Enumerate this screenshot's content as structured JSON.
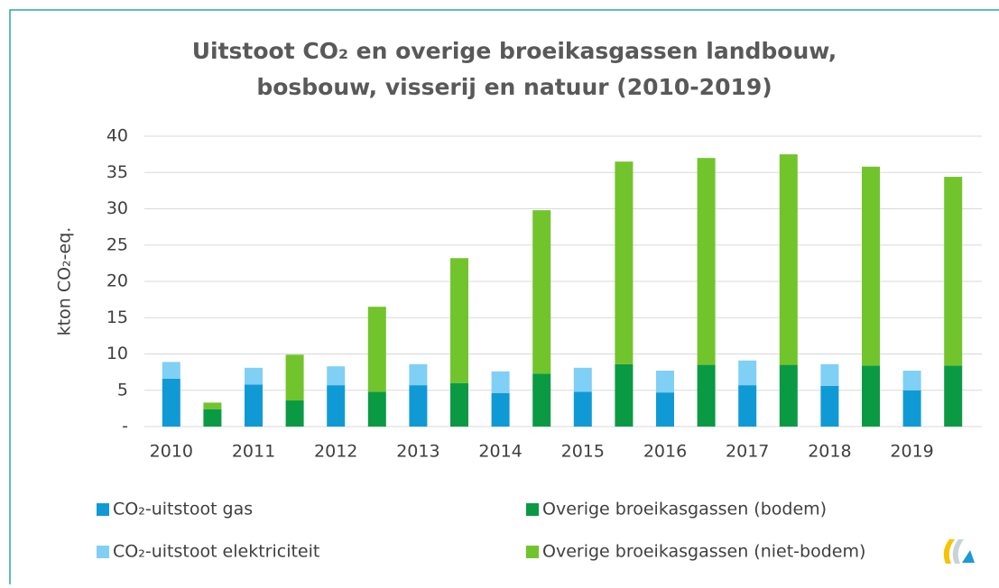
{
  "chart_data": {
    "type": "bar",
    "stacked": true,
    "title": [
      "Uitstoot CO₂ en overige broeikasgassen landbouw,",
      "bosbouw, visserij en natuur (2010-2019)"
    ],
    "y_label": "kton CO₂-eq.",
    "categories": [
      "2010",
      null,
      "2011",
      null,
      "2012",
      null,
      "2013",
      null,
      "2014",
      null,
      "2015",
      null,
      "2016",
      null,
      "2017",
      null,
      "2018",
      null,
      "2019",
      null
    ],
    "series": [
      {
        "name": "CO₂-uitstoot gas",
        "color": "#0f9ad6",
        "values": [
          6.6,
          null,
          5.8,
          null,
          5.7,
          null,
          5.7,
          null,
          4.6,
          null,
          4.8,
          null,
          4.7,
          null,
          5.7,
          null,
          5.6,
          null,
          5.0,
          null
        ]
      },
      {
        "name": "CO₂-uitstoot elektriciteit",
        "color": "#80cff5",
        "values": [
          2.3,
          null,
          2.3,
          null,
          2.6,
          null,
          2.9,
          null,
          3.0,
          null,
          3.3,
          null,
          3.0,
          null,
          3.4,
          null,
          3.0,
          null,
          2.7,
          null
        ]
      },
      {
        "name": "Overige broeikasgassen (bodem)",
        "color": "#0a9a44",
        "values": [
          null,
          2.4,
          null,
          3.6,
          null,
          4.8,
          null,
          6.0,
          null,
          7.3,
          null,
          8.6,
          null,
          8.5,
          null,
          8.5,
          null,
          8.4,
          null,
          8.4
        ]
      },
      {
        "name": "Overige broeikasgassen (niet-bodem)",
        "color": "#72c42c",
        "values": [
          null,
          0.9,
          null,
          6.3,
          null,
          11.7,
          null,
          17.2,
          null,
          22.5,
          null,
          27.9,
          null,
          28.5,
          null,
          29.0,
          null,
          27.4,
          null,
          26.0
        ]
      }
    ],
    "ylim": [
      0,
      40
    ],
    "yticks": [
      {
        "value": 0,
        "label": "-"
      },
      5,
      10,
      15,
      20,
      25,
      30,
      35,
      40
    ],
    "grid": true,
    "legend": "bottom"
  }
}
